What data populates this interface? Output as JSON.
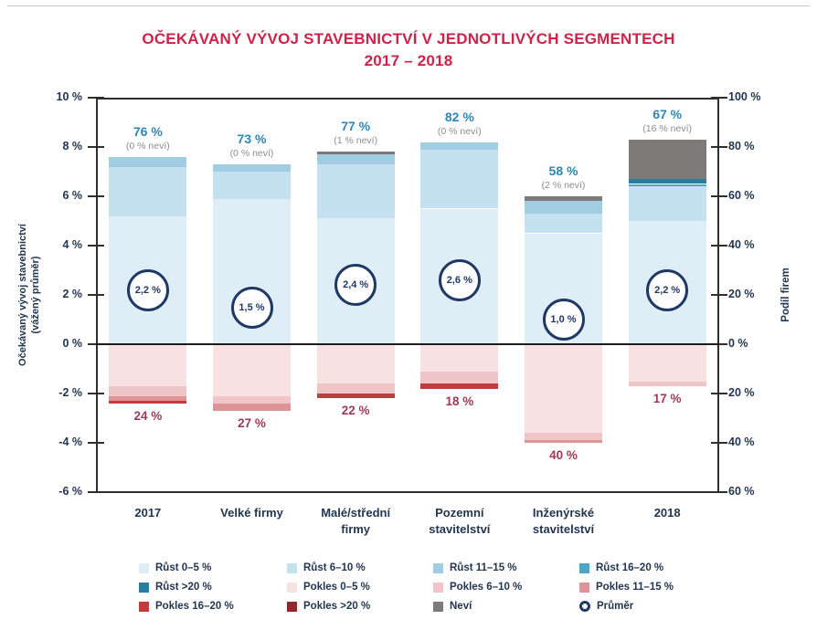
{
  "chart_data": {
    "type": "bar",
    "title": "OČEKÁVANÝ VÝVOJ STAVEBNICTVÍ V JEDNOTLIVÝCH SEGMENTECH",
    "subtitle": "2017 – 2018",
    "title_color": "#CE2248",
    "left_axis": {
      "title_line1": "Očekávaný vývoj stavebnictví",
      "title_line2": "(vážený průměr)",
      "range": [
        10,
        -6
      ],
      "ticks": [
        {
          "label": "10 %",
          "value": 10
        },
        {
          "label": "8 %",
          "value": 8
        },
        {
          "label": "6 %",
          "value": 6
        },
        {
          "label": "4 %",
          "value": 4
        },
        {
          "label": "2 %",
          "value": 2
        },
        {
          "label": "0 %",
          "value": 0
        },
        {
          "label": "-2 %",
          "value": -2
        },
        {
          "label": "-4 %",
          "value": -4
        },
        {
          "label": "-6 %",
          "value": -6
        }
      ]
    },
    "right_axis": {
      "title": "Podíl firem",
      "ticks": [
        {
          "label": "100 %",
          "value": 10
        },
        {
          "label": "80 %",
          "value": 8
        },
        {
          "label": "60 %",
          "value": 6
        },
        {
          "label": "40 %",
          "value": 4
        },
        {
          "label": "20 %",
          "value": 2
        },
        {
          "label": "0 %",
          "value": 0
        },
        {
          "label": "20 %",
          "value": -2
        },
        {
          "label": "40 %",
          "value": -4
        },
        {
          "label": "60 %",
          "value": -6
        }
      ]
    },
    "text_colors": {
      "growth_label": "#2E86B2",
      "nevi_label": "#8C8C8C",
      "decline_label": "#A03A52",
      "axis_text": "#22364F",
      "average_outline": "#1F3864"
    },
    "segment_colors": {
      "r0_5": "#DEEDF6",
      "r6_10": "#C5E0EE",
      "r11_15": "#A0CDE2",
      "r16_20": "#4EA5C6",
      "r_gt20": "#2B7D9E",
      "p0_5": "#F7E1E2",
      "p6_10": "#EFC5C7",
      "p11_15": "#DE9496",
      "p16_20": "#C23B3D",
      "p_gt20": "#8E2A2B",
      "nevi": "#7E7A7A"
    },
    "legend": [
      {
        "key": "r0_5",
        "label": "Růst 0–5 %",
        "color": "#DEEDF6"
      },
      {
        "key": "r6_10",
        "label": "Růst 6–10 %",
        "color": "#C5E0EE"
      },
      {
        "key": "r11_15",
        "label": "Růst 11–15 %",
        "color": "#A0CDE2"
      },
      {
        "key": "r16_20",
        "label": "Růst 16–20 %",
        "color": "#4EA5C6"
      },
      {
        "key": "r_gt20",
        "label": "Růst >20 %",
        "color": "#2B7D9E"
      },
      {
        "key": "p0_5",
        "label": "Pokles 0–5 %",
        "color": "#F7E1E2"
      },
      {
        "key": "p6_10",
        "label": "Pokles 6–10 %",
        "color": "#EFC5C7"
      },
      {
        "key": "p11_15",
        "label": "Pokles 11–15 %",
        "color": "#DE9496"
      },
      {
        "key": "p16_20",
        "label": "Pokles 16–20 %",
        "color": "#C23B3D"
      },
      {
        "key": "p_gt20",
        "label": "Pokles >20 %",
        "color": "#8E2A2B"
      },
      {
        "key": "nevi",
        "label": "Neví",
        "color": "#7E7A7A"
      },
      {
        "key": "prumer",
        "label": "Průměr",
        "type": "circle"
      }
    ],
    "bars": [
      {
        "category_lines": [
          "2017"
        ],
        "growth_share_label": "76 %",
        "nevi_note": "(0 % neví)",
        "average_label": "2,2 %",
        "average_value": 2.2,
        "decline_share_label": "24 %",
        "nevi_value": 0,
        "growth_segments": [
          {
            "segment": "r0_5",
            "value": 52
          },
          {
            "segment": "r6_10",
            "value": 20
          },
          {
            "segment": "r11_15",
            "value": 4
          }
        ],
        "decline_segments": [
          {
            "segment": "p0_5",
            "value": 17
          },
          {
            "segment": "p6_10",
            "value": 4
          },
          {
            "segment": "p11_15",
            "value": 2
          },
          {
            "segment": "p16_20",
            "value": 1
          }
        ]
      },
      {
        "category_lines": [
          "Velké firmy"
        ],
        "growth_share_label": "73 %",
        "nevi_note": "(0 % neví)",
        "average_label": "1,5 %",
        "average_value": 1.5,
        "decline_share_label": "27 %",
        "nevi_value": 0,
        "growth_segments": [
          {
            "segment": "r0_5",
            "value": 59
          },
          {
            "segment": "r6_10",
            "value": 11
          },
          {
            "segment": "r11_15",
            "value": 3
          }
        ],
        "decline_segments": [
          {
            "segment": "p0_5",
            "value": 21
          },
          {
            "segment": "p6_10",
            "value": 3
          },
          {
            "segment": "p11_15",
            "value": 3
          }
        ]
      },
      {
        "category_lines": [
          "Malé/střední",
          "firmy"
        ],
        "growth_share_label": "77 %",
        "nevi_note": "(1 % neví)",
        "average_label": "2,4 %",
        "average_value": 2.4,
        "decline_share_label": "22 %",
        "nevi_value": 1,
        "growth_segments": [
          {
            "segment": "r0_5",
            "value": 51
          },
          {
            "segment": "r6_10",
            "value": 22
          },
          {
            "segment": "r11_15",
            "value": 4
          }
        ],
        "decline_segments": [
          {
            "segment": "p0_5",
            "value": 16
          },
          {
            "segment": "p6_10",
            "value": 4
          },
          {
            "segment": "p16_20",
            "value": 2
          }
        ]
      },
      {
        "category_lines": [
          "Pozemní",
          "stavitelství"
        ],
        "growth_share_label": "82 %",
        "nevi_note": "(0 % neví)",
        "average_label": "2,6 %",
        "average_value": 2.6,
        "decline_share_label": "18 %",
        "nevi_value": 0,
        "growth_segments": [
          {
            "segment": "r0_5",
            "value": 55
          },
          {
            "segment": "r6_10",
            "value": 24
          },
          {
            "segment": "r11_15",
            "value": 3
          }
        ],
        "decline_segments": [
          {
            "segment": "p0_5",
            "value": 11
          },
          {
            "segment": "p6_10",
            "value": 5
          },
          {
            "segment": "p16_20",
            "value": 2
          }
        ]
      },
      {
        "category_lines": [
          "Inženýrské",
          "stavitelství"
        ],
        "growth_share_label": "58 %",
        "nevi_note": "(2 % neví)",
        "average_label": "1,0 %",
        "average_value": 1.0,
        "decline_share_label": "40 %",
        "nevi_value": 2,
        "growth_segments": [
          {
            "segment": "r0_5",
            "value": 45
          },
          {
            "segment": "r6_10",
            "value": 8
          },
          {
            "segment": "r11_15",
            "value": 5
          }
        ],
        "decline_segments": [
          {
            "segment": "p0_5",
            "value": 36
          },
          {
            "segment": "p6_10",
            "value": 3
          },
          {
            "segment": "p11_15",
            "value": 1
          }
        ]
      },
      {
        "category_lines": [
          "2018"
        ],
        "growth_share_label": "67 %",
        "nevi_note": "(16 % neví)",
        "average_label": "2,2 %",
        "average_value": 2.2,
        "decline_share_label": "17 %",
        "nevi_value": 16,
        "growth_segments": [
          {
            "segment": "r0_5",
            "value": 50
          },
          {
            "segment": "r6_10",
            "value": 14
          },
          {
            "segment": "r16_20",
            "value": 1
          },
          {
            "segment": "r_gt20",
            "value": 2
          }
        ],
        "decline_segments": [
          {
            "segment": "p0_5",
            "value": 15
          },
          {
            "segment": "p6_10",
            "value": 2
          }
        ]
      }
    ]
  }
}
